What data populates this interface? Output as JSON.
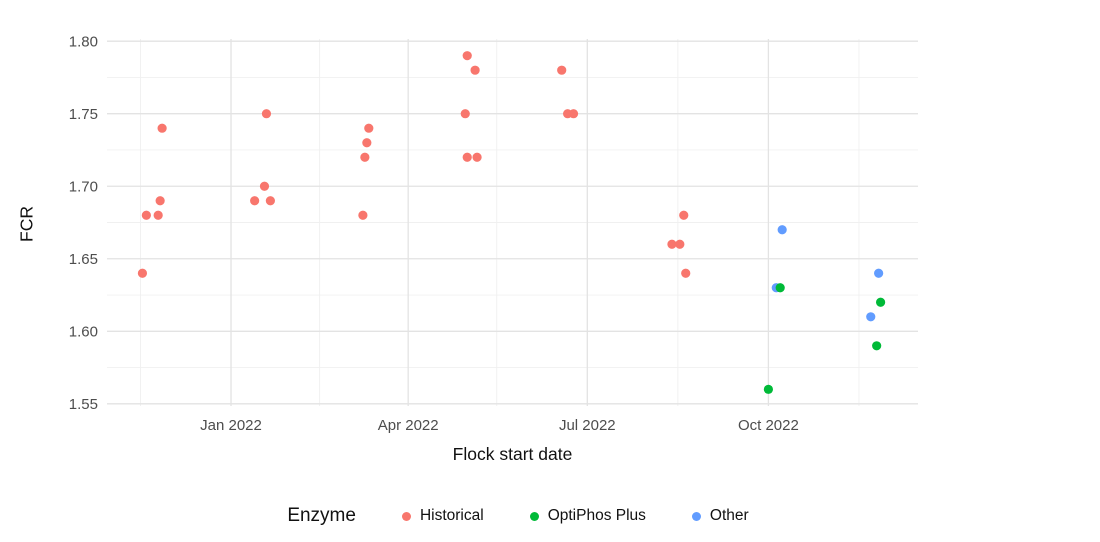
{
  "chart_data": {
    "type": "scatter",
    "title": "",
    "xlabel": "Flock start date",
    "ylabel": "FCR",
    "legend_title": "Enzyme",
    "legend_position": "bottom",
    "background_color": "#ffffff",
    "grid": {
      "show_major": true,
      "show_minor": true,
      "major_color": "#e3e3e3",
      "minor_color": "#f0f0f0"
    },
    "axis": {
      "x_domain": [
        "2021-10-30",
        "2022-12-16"
      ],
      "y_domain": [
        1.5485,
        1.8015
      ],
      "x_ticks": [
        {
          "date": "2022-01-01",
          "label": "Jan 2022"
        },
        {
          "date": "2022-04-01",
          "label": "Apr 2022"
        },
        {
          "date": "2022-07-01",
          "label": "Jul 2022"
        },
        {
          "date": "2022-10-01",
          "label": "Oct 2022"
        }
      ],
      "x_minor_ticks": [
        "2021-11-16",
        "2022-02-15",
        "2022-05-16",
        "2022-08-16",
        "2022-11-16"
      ],
      "y_ticks": [
        {
          "value": 1.55,
          "label": "1.55"
        },
        {
          "value": 1.6,
          "label": "1.60"
        },
        {
          "value": 1.65,
          "label": "1.65"
        },
        {
          "value": 1.7,
          "label": "1.70"
        },
        {
          "value": 1.75,
          "label": "1.75"
        },
        {
          "value": 1.8,
          "label": "1.80"
        }
      ],
      "y_minor_ticks": [
        1.575,
        1.625,
        1.675,
        1.725,
        1.775
      ],
      "tick_label_color": "#4d4d4d"
    },
    "point_radius": 4.6,
    "render_order": [
      0,
      2,
      1
    ],
    "series": [
      {
        "name": "Historical",
        "color": "#f8766d",
        "points": [
          {
            "date": "2021-11-17",
            "fcr": 1.64
          },
          {
            "date": "2021-11-19",
            "fcr": 1.68
          },
          {
            "date": "2021-11-25",
            "fcr": 1.68
          },
          {
            "date": "2021-11-26",
            "fcr": 1.69
          },
          {
            "date": "2021-11-27",
            "fcr": 1.74
          },
          {
            "date": "2022-01-13",
            "fcr": 1.69
          },
          {
            "date": "2022-01-18",
            "fcr": 1.7
          },
          {
            "date": "2022-01-19",
            "fcr": 1.75
          },
          {
            "date": "2022-01-21",
            "fcr": 1.69
          },
          {
            "date": "2022-03-09",
            "fcr": 1.68
          },
          {
            "date": "2022-03-10",
            "fcr": 1.72
          },
          {
            "date": "2022-03-11",
            "fcr": 1.73
          },
          {
            "date": "2022-03-12",
            "fcr": 1.74
          },
          {
            "date": "2022-04-30",
            "fcr": 1.75
          },
          {
            "date": "2022-05-01",
            "fcr": 1.79
          },
          {
            "date": "2022-05-01",
            "fcr": 1.72
          },
          {
            "date": "2022-05-05",
            "fcr": 1.78
          },
          {
            "date": "2022-05-06",
            "fcr": 1.72
          },
          {
            "date": "2022-06-18",
            "fcr": 1.78
          },
          {
            "date": "2022-06-21",
            "fcr": 1.75
          },
          {
            "date": "2022-06-24",
            "fcr": 1.75
          },
          {
            "date": "2022-08-13",
            "fcr": 1.66
          },
          {
            "date": "2022-08-17",
            "fcr": 1.66
          },
          {
            "date": "2022-08-19",
            "fcr": 1.68
          },
          {
            "date": "2022-08-20",
            "fcr": 1.64
          }
        ]
      },
      {
        "name": "OptiPhos Plus",
        "color": "#00ba38",
        "points": [
          {
            "date": "2022-10-01",
            "fcr": 1.56
          },
          {
            "date": "2022-10-07",
            "fcr": 1.63
          },
          {
            "date": "2022-11-25",
            "fcr": 1.59
          },
          {
            "date": "2022-11-27",
            "fcr": 1.62
          }
        ]
      },
      {
        "name": "Other",
        "color": "#619cff",
        "points": [
          {
            "date": "2022-10-05",
            "fcr": 1.63
          },
          {
            "date": "2022-10-08",
            "fcr": 1.67
          },
          {
            "date": "2022-11-22",
            "fcr": 1.61
          },
          {
            "date": "2022-11-26",
            "fcr": 1.64
          }
        ]
      }
    ]
  }
}
